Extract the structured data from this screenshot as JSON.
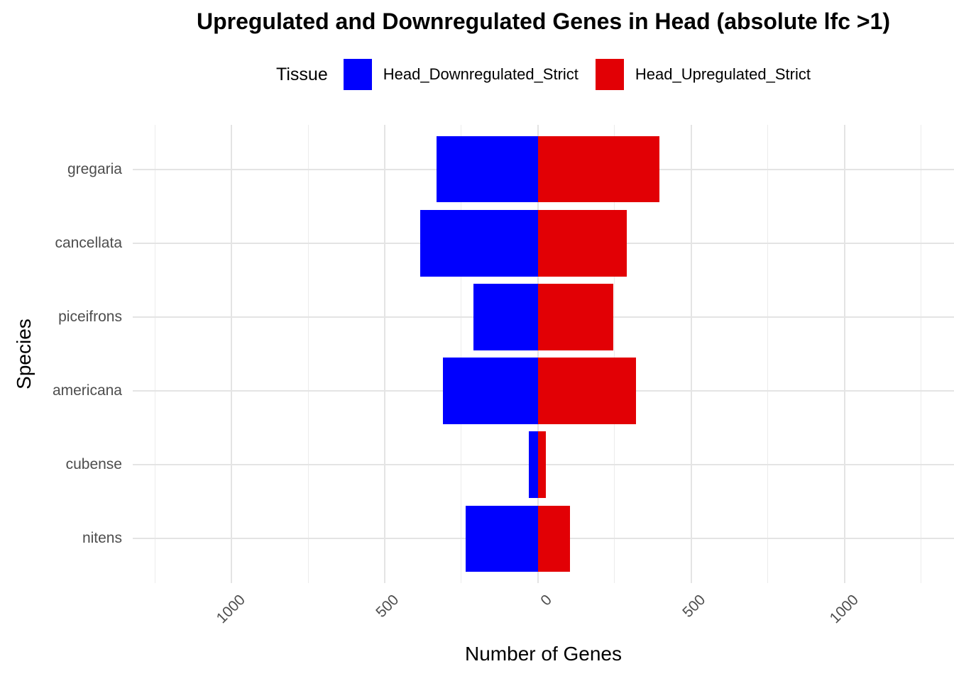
{
  "chart_data": {
    "type": "bar",
    "orientation": "horizontal-diverging",
    "title": "Upregulated and Downregulated Genes in Head (absolute lfc >1)",
    "legend_title": "Tissue",
    "legend_position": "top",
    "xlabel": "Number of Genes",
    "ylabel": "Species",
    "categories": [
      "gregaria",
      "cancellata",
      "piceifrons",
      "americana",
      "cubense",
      "nitens"
    ],
    "series": [
      {
        "name": "Head_Downregulated_Strict",
        "color": "#0000fe",
        "direction": "negative",
        "values": [
          330,
          385,
          210,
          310,
          30,
          235
        ]
      },
      {
        "name": "Head_Upregulated_Strict",
        "color": "#e20005",
        "direction": "positive",
        "values": [
          395,
          290,
          245,
          320,
          25,
          105
        ]
      }
    ],
    "x_axis": {
      "range": [
        -1322,
        1357
      ],
      "ticks": [
        -1000,
        -500,
        0,
        500,
        1000
      ],
      "tick_labels": [
        "1000",
        "500",
        "0",
        "500",
        "1000"
      ],
      "minor_ticks": [
        -1250,
        -750,
        -250,
        250,
        750,
        1250
      ],
      "tick_label_rotation_deg": 45
    },
    "grid": true,
    "background": "#ffffff",
    "bar_width_fraction": 0.9
  }
}
